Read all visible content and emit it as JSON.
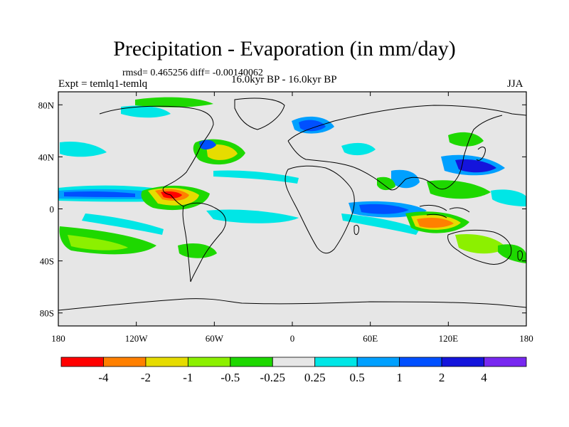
{
  "title": "Precipitation - Evaporation (in mm/day)",
  "stats": "rmsd= 0.465256 diff= -0.00140062",
  "experiment": "Expt = temlq1-temlq",
  "period": "16.0kyr BP - 16.0kyr BP",
  "season": "JJA",
  "map": {
    "lon_ticks": [
      "180",
      "120W",
      "60W",
      "0",
      "60E",
      "120E",
      "180"
    ],
    "lat_ticks": [
      "80N",
      "40N",
      "0",
      "40S",
      "80S"
    ],
    "background_color": "#e6e6e6"
  },
  "colorbar": {
    "colors": [
      "#ff0000",
      "#ff8000",
      "#e6dc00",
      "#8cf000",
      "#1ed800",
      "#e6e6e6",
      "#00e6e6",
      "#00a0ff",
      "#0050ff",
      "#1414dc",
      "#7828f0"
    ],
    "labels": [
      "-4",
      "-2",
      "-1",
      "-0.5",
      "-0.25",
      "0.25",
      "0.5",
      "1",
      "2",
      "4"
    ]
  }
}
